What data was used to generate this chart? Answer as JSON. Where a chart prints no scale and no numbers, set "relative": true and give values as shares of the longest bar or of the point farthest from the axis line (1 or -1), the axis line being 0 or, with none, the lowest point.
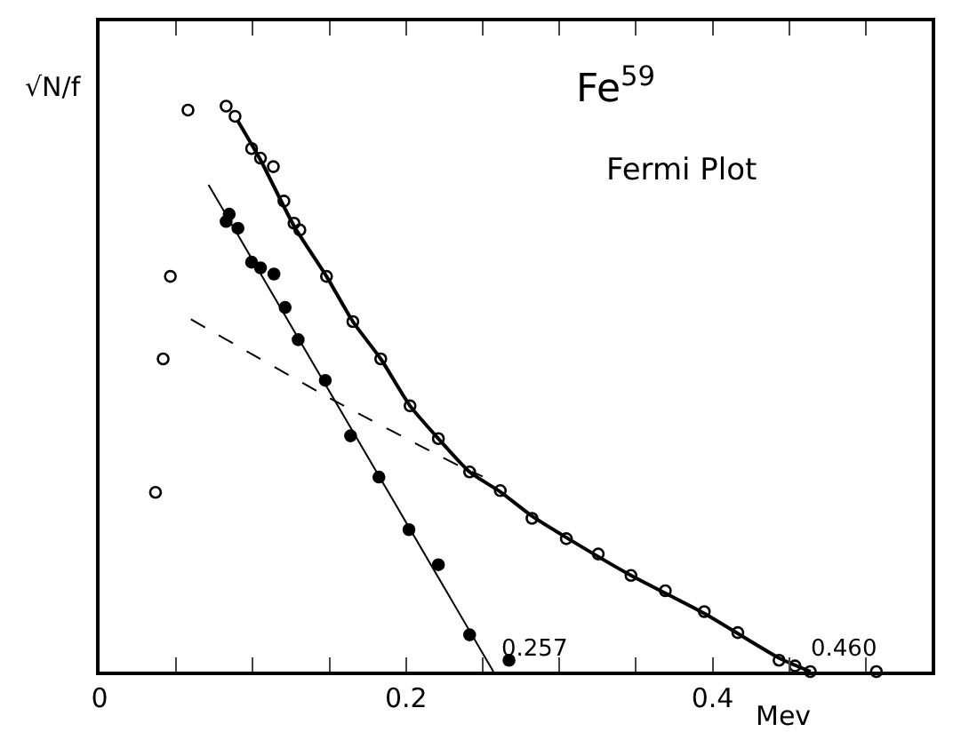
{
  "chart_data": {
    "type": "scatter",
    "relative": true,
    "xlabel": "Mev",
    "ylabel": "√N/f",
    "xlim": [
      0,
      0.543
    ],
    "xticks": [
      0,
      {
        "value": 0.05,
        "label": null
      },
      {
        "value": 0.1,
        "label": null
      },
      {
        "value": 0.15,
        "label": null
      },
      0.2,
      {
        "value": 0.25,
        "label": null
      },
      {
        "value": 0.3,
        "label": null
      },
      {
        "value": 0.35,
        "label": null
      },
      0.4,
      {
        "value": 0.45,
        "label": null
      },
      {
        "value": 0.5,
        "label": null
      }
    ],
    "annotations": [
      "Fe$^{59}$",
      "Fermi Plot",
      {
        "text": "0.257",
        "x": 0.257,
        "y": 0
      },
      {
        "text": "0.460",
        "x": 0.46,
        "y": 0
      }
    ],
    "series": [
      {
        "marker": "circle",
        "color": "#000000",
        "x": [
          0.0365,
          0.0415,
          0.0462,
          0.0577,
          0.0826,
          0.0884,
          0.0992,
          0.105,
          0.1134,
          0.1203,
          0.1269,
          0.1307,
          0.1481,
          0.1653,
          0.1835,
          0.2026,
          0.2211,
          0.2415,
          0.2615,
          0.2822,
          0.3046,
          0.3254,
          0.3468,
          0.3692,
          0.3946,
          0.4165,
          0.4434,
          0.4538,
          0.4638,
          0.5069
        ],
        "values": [
          0.317,
          0.553,
          0.699,
          0.993,
          1.0,
          0.982,
          0.925,
          0.908,
          0.893,
          0.832,
          0.793,
          0.781,
          0.699,
          0.619,
          0.553,
          0.47,
          0.412,
          0.353,
          0.32,
          0.271,
          0.235,
          0.208,
          0.17,
          0.143,
          0.106,
          0.069,
          0.02,
          0.01,
          0,
          0
        ]
      },
      {
        "marker": "circle",
        "color": "#000000",
        "x": [
          0.0826,
          0.0846,
          0.0903,
          0.0992,
          0.105,
          0.1138,
          0.1211,
          0.1296,
          0.1473,
          0.1638,
          0.1823,
          0.2019,
          0.2211,
          0.2415,
          0.2672
        ],
        "values": [
          0.796,
          0.809,
          0.784,
          0.724,
          0.714,
          0.703,
          0.644,
          0.587,
          0.515,
          0.417,
          0.344,
          0.251,
          0.189,
          0.065,
          0.02
        ]
      },
      {
        "type": "line",
        "color": "#000000",
        "line_style": "solid",
        "x": [
          0.09,
          0.105,
          0.1269,
          0.1481,
          0.1653,
          0.1835,
          0.2026,
          0.2211,
          0.2415,
          0.2615,
          0.2822,
          0.3046,
          0.3468,
          0.3946,
          0.4434,
          0.464
        ],
        "values": [
          0.975,
          0.905,
          0.788,
          0.699,
          0.619,
          0.553,
          0.47,
          0.412,
          0.353,
          0.318,
          0.275,
          0.237,
          0.17,
          0.103,
          0.024,
          0
        ]
      },
      {
        "type": "line",
        "color": "#000000",
        "line_style": "solid",
        "x": [
          0.0711,
          0.257
        ],
        "values": [
          0.861,
          0
        ]
      },
      {
        "type": "line",
        "color": "#000000",
        "line_style": "dashed",
        "x": [
          0.0596,
          0.15,
          0.2346,
          0.25
        ],
        "values": [
          0.623,
          0.484,
          0.364,
          0.345
        ]
      }
    ]
  }
}
